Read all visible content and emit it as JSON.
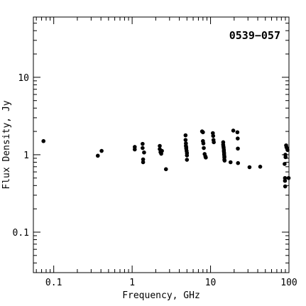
{
  "chart_data": {
    "type": "scatter",
    "title": "0539−057",
    "xlabel": "Frequency, GHz",
    "ylabel": "Flux Density, Jy",
    "x_scale": "log",
    "y_scale": "log",
    "xlim": [
      0.055,
      100
    ],
    "ylim": [
      0.03,
      60
    ],
    "x_ticks": [
      {
        "value": 0.1,
        "label": "0.1"
      },
      {
        "value": 1,
        "label": "1"
      },
      {
        "value": 10,
        "label": "10"
      },
      {
        "value": 100,
        "label": "100"
      }
    ],
    "y_ticks": [
      {
        "value": 0.1,
        "label": "0.1"
      },
      {
        "value": 1,
        "label": "1"
      },
      {
        "value": 10,
        "label": "10"
      }
    ],
    "grid": false,
    "legend": "none",
    "marker_color": "#000000",
    "points": [
      [
        0.074,
        1.5
      ],
      [
        0.365,
        0.97
      ],
      [
        0.408,
        1.12
      ],
      [
        1.08,
        1.17
      ],
      [
        1.08,
        1.26
      ],
      [
        1.36,
        1.38
      ],
      [
        1.36,
        1.22
      ],
      [
        1.38,
        0.87
      ],
      [
        1.38,
        0.8
      ],
      [
        1.42,
        1.07
      ],
      [
        2.25,
        1.3
      ],
      [
        2.25,
        1.18
      ],
      [
        2.3,
        1.08
      ],
      [
        2.35,
        1.03
      ],
      [
        2.4,
        1.12
      ],
      [
        2.7,
        0.65
      ],
      [
        4.8,
        1.78
      ],
      [
        4.8,
        1.55
      ],
      [
        4.85,
        1.4
      ],
      [
        4.85,
        1.3
      ],
      [
        4.9,
        1.25
      ],
      [
        4.9,
        1.2
      ],
      [
        4.95,
        1.12
      ],
      [
        5.0,
        1.05
      ],
      [
        5.0,
        0.98
      ],
      [
        5.0,
        0.86
      ],
      [
        7.8,
        2.0
      ],
      [
        8.0,
        1.95
      ],
      [
        8.0,
        1.5
      ],
      [
        8.1,
        1.4
      ],
      [
        8.2,
        1.22
      ],
      [
        8.4,
        1.02
      ],
      [
        8.6,
        0.95
      ],
      [
        8.7,
        0.92
      ],
      [
        10.7,
        1.9
      ],
      [
        10.8,
        1.75
      ],
      [
        10.9,
        1.55
      ],
      [
        11.0,
        1.45
      ],
      [
        14.5,
        1.45
      ],
      [
        14.5,
        1.35
      ],
      [
        14.6,
        1.28
      ],
      [
        14.7,
        1.22
      ],
      [
        14.8,
        1.15
      ],
      [
        14.8,
        1.1
      ],
      [
        14.9,
        1.05
      ],
      [
        14.9,
        1.0
      ],
      [
        15.0,
        0.95
      ],
      [
        15.0,
        0.92
      ],
      [
        15.0,
        0.86
      ],
      [
        15.1,
        0.84
      ],
      [
        18.0,
        0.8
      ],
      [
        19.5,
        2.05
      ],
      [
        22.0,
        1.95
      ],
      [
        22.2,
        1.62
      ],
      [
        22.3,
        1.2
      ],
      [
        22.4,
        0.78
      ],
      [
        31.4,
        0.69
      ],
      [
        43.0,
        0.7
      ],
      [
        88.0,
        0.76
      ],
      [
        89.0,
        0.5
      ],
      [
        89.0,
        0.46
      ],
      [
        89.5,
        0.39
      ],
      [
        90.0,
        1.0
      ],
      [
        90.5,
        0.93
      ],
      [
        92.0,
        1.32
      ],
      [
        93.0,
        1.25
      ],
      [
        95.0,
        1.2
      ],
      [
        96.0,
        1.15
      ],
      [
        99.0,
        0.5
      ]
    ]
  }
}
